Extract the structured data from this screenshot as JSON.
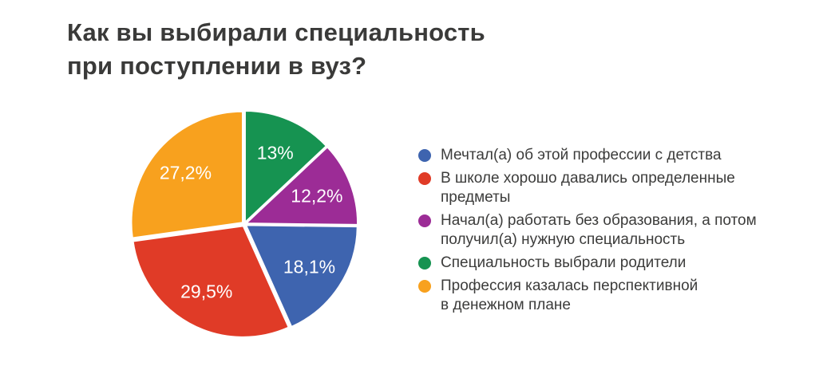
{
  "title": "Как вы выбирали специальность\nпри поступлении в вуз?",
  "title_color": "#3A3A39",
  "background_color": "#FFFFFF",
  "chart_data": {
    "type": "pie",
    "title": "Как вы выбирали специальность при поступлении в вуз?",
    "start_angle_deg": 0,
    "direction": "clockwise",
    "total": 100,
    "label_color": "#FFFFFF",
    "slices": [
      {
        "name": "green",
        "value": 13,
        "display": "13%",
        "color": "#169351",
        "legend_label": "Специальность выбрали родители"
      },
      {
        "name": "purple",
        "value": 12.2,
        "display": "12,2%",
        "color": "#9C2C96",
        "legend_label": "Начал(а) работать без образования, а потом получил(а) нужную специальность"
      },
      {
        "name": "blue",
        "value": 18.1,
        "display": "18,1%",
        "color": "#3E64AF",
        "legend_label": "Мечтал(а) об этой профессии с детства"
      },
      {
        "name": "red",
        "value": 29.5,
        "display": "29,5%",
        "color": "#E03B27",
        "legend_label": "В школе хорошо давались определенные предметы"
      },
      {
        "name": "orange",
        "value": 27.2,
        "display": "27,2%",
        "color": "#F8A11E",
        "legend_label": "Профессия казалась перспективной в денежном плане"
      }
    ]
  },
  "legend": {
    "items": [
      {
        "name": "blue",
        "color": "#3E64AF",
        "label": "Мечтал(а) об этой профессии с детства"
      },
      {
        "name": "red",
        "color": "#E03B27",
        "label": "В школе хорошо давались определенные\nпредметы"
      },
      {
        "name": "purple",
        "color": "#9C2C96",
        "label": "Начал(а) работать без образования, а потом\nполучил(а) нужную специальность"
      },
      {
        "name": "green",
        "color": "#169351",
        "label": "Специальность выбрали родители"
      },
      {
        "name": "orange",
        "color": "#F8A11E",
        "label": "Профессия казалась перспективной\nв денежном плане"
      }
    ]
  }
}
